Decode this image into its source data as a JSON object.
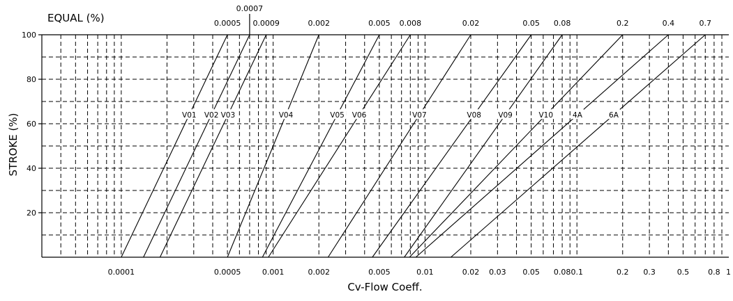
{
  "chart_data": {
    "type": "line",
    "title": "EQUAL (%)",
    "xlabel": "Cv-Flow Coeff.",
    "ylabel": "STROKE (%)",
    "x_scale": "log",
    "xlim": [
      3e-05,
      1
    ],
    "ylim": [
      0,
      100
    ],
    "grid": true,
    "y_ticks": [
      20,
      40,
      60,
      80,
      100
    ],
    "y_tick_labels": [
      "20",
      "40",
      "60",
      "80",
      "100"
    ],
    "y_grid": [
      10,
      20,
      30,
      40,
      50,
      60,
      70,
      80,
      90
    ],
    "x_grid": [
      4e-05,
      5e-05,
      6e-05,
      7e-05,
      8e-05,
      9e-05,
      0.0001,
      0.0002,
      0.0003,
      0.0004,
      0.0005,
      0.0006,
      0.0007,
      0.0008,
      0.0009,
      0.001,
      0.002,
      0.003,
      0.004,
      0.005,
      0.006,
      0.007,
      0.008,
      0.009,
      0.01,
      0.02,
      0.03,
      0.04,
      0.05,
      0.06,
      0.07,
      0.08,
      0.09,
      0.1,
      0.2,
      0.3,
      0.4,
      0.5,
      0.6,
      0.7,
      0.8,
      0.9
    ],
    "x_tick_labels": [
      {
        "v": 0.0001,
        "label": "0.0001"
      },
      {
        "v": 0.0005,
        "label": "0.0005"
      },
      {
        "v": 0.001,
        "label": "0.001"
      },
      {
        "v": 0.002,
        "label": "0.002"
      },
      {
        "v": 0.005,
        "label": "0.005"
      },
      {
        "v": 0.01,
        "label": "0.01"
      },
      {
        "v": 0.02,
        "label": "0.02"
      },
      {
        "v": 0.03,
        "label": "0.03"
      },
      {
        "v": 0.05,
        "label": "0.05"
      },
      {
        "v": 0.08,
        "label": "0.08"
      },
      {
        "v": 0.1,
        "label": "0.1"
      },
      {
        "v": 0.2,
        "label": "0.2"
      },
      {
        "v": 0.3,
        "label": "0.3"
      },
      {
        "v": 0.5,
        "label": "0.5"
      },
      {
        "v": 0.8,
        "label": "0.8"
      },
      {
        "v": 1,
        "label": "1"
      }
    ],
    "top_labels": [
      "0.0005",
      "0.0007",
      "0.0009",
      "0.002",
      "0.005",
      "0.008",
      "0.02",
      "0.05",
      "0.08",
      "0.2",
      "0.4",
      "0.7"
    ],
    "series": [
      {
        "name": "V01",
        "cv_max": 0.0005,
        "cv_min": 0.0001,
        "label_stroke": 64
      },
      {
        "name": "V02",
        "cv_max": 0.0007,
        "cv_min": 0.00014,
        "label_stroke": 64
      },
      {
        "name": "V03",
        "cv_max": 0.0009,
        "cv_min": 0.00018,
        "label_stroke": 64
      },
      {
        "name": "V04",
        "cv_max": 0.002,
        "cv_min": 0.0005,
        "label_stroke": 64
      },
      {
        "name": "V05",
        "cv_max": 0.005,
        "cv_min": 0.00085,
        "label_stroke": 64
      },
      {
        "name": "V06",
        "cv_max": 0.008,
        "cv_min": 0.00093,
        "label_stroke": 64
      },
      {
        "name": "V07",
        "cv_max": 0.02,
        "cv_min": 0.0023,
        "label_stroke": 64
      },
      {
        "name": "V08",
        "cv_max": 0.05,
        "cv_min": 0.0045,
        "label_stroke": 64
      },
      {
        "name": "V09",
        "cv_max": 0.08,
        "cv_min": 0.0073,
        "label_stroke": 64
      },
      {
        "name": "V10",
        "cv_max": 0.2,
        "cv_min": 0.0079,
        "label_stroke": 64
      },
      {
        "name": "4A",
        "cv_max": 0.4,
        "cv_min": 0.0087,
        "label_stroke": 64
      },
      {
        "name": "6A",
        "cv_max": 0.7,
        "cv_min": 0.0148,
        "label_stroke": 64
      }
    ]
  }
}
